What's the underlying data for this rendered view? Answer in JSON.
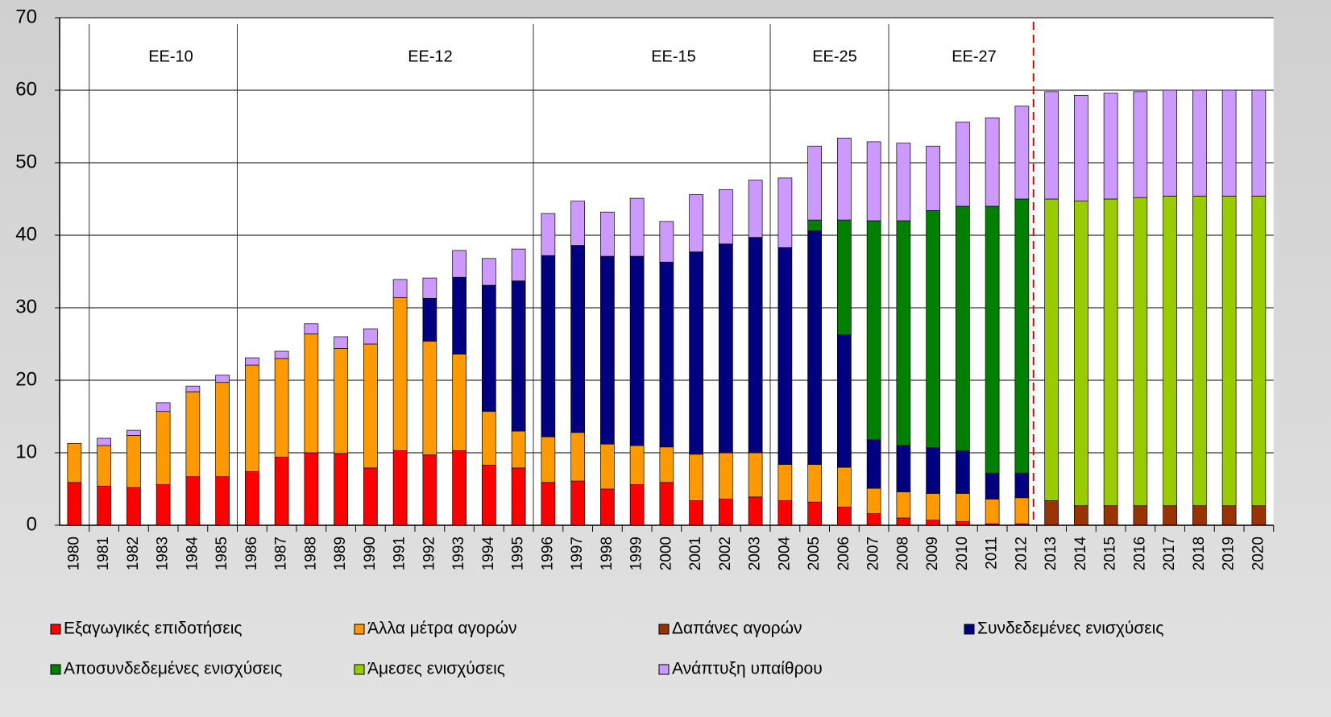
{
  "chart_data": {
    "type": "stacked-bar",
    "annotations": [
      "ΕΕ-10",
      "ΕΕ-12",
      "ΕΕ-15",
      "ΕΕ-25",
      "ΕΕ-27"
    ],
    "categories": [
      "1980",
      "1981",
      "1982",
      "1983",
      "1984",
      "1985",
      "1986",
      "1987",
      "1988",
      "1989",
      "1990",
      "1991",
      "1992",
      "1993",
      "1994",
      "1995",
      "1996",
      "1997",
      "1998",
      "1999",
      "2000",
      "2001",
      "2002",
      "2003",
      "2004",
      "2005",
      "2006",
      "2007",
      "2008",
      "2009",
      "2010",
      "2011",
      "2012",
      "2013",
      "2014",
      "2015",
      "2016",
      "2017",
      "2018",
      "2019",
      "2020"
    ],
    "series": [
      {
        "name": "Εξαγωγικές επιδοτήσεις",
        "color": "#ff0000",
        "values": [
          5.9,
          5.4,
          5.2,
          5.6,
          6.7,
          6.7,
          7.4,
          9.4,
          10.0,
          9.9,
          7.9,
          10.3,
          9.7,
          10.3,
          8.3,
          7.9,
          5.9,
          6.1,
          5.0,
          5.6,
          5.9,
          3.4,
          3.6,
          3.9,
          3.4,
          3.2,
          2.5,
          1.6,
          1.0,
          0.7,
          0.5,
          0.2,
          0.2,
          null,
          null,
          null,
          null,
          null,
          null,
          null,
          null
        ]
      },
      {
        "name": "Άλλα μέτρα αγορών",
        "color": "#ff9900",
        "values": [
          5.4,
          5.6,
          7.2,
          10.1,
          11.7,
          13.0,
          14.7,
          13.6,
          16.4,
          14.5,
          17.1,
          21.1,
          15.7,
          13.3,
          7.4,
          5.1,
          6.3,
          6.7,
          6.2,
          5.4,
          4.9,
          6.4,
          6.4,
          6.1,
          5.0,
          5.2,
          5.5,
          3.5,
          3.6,
          3.7,
          3.9,
          3.4,
          3.6,
          null,
          null,
          null,
          null,
          null,
          null,
          null,
          null
        ]
      },
      {
        "name": "Δαπάνες αγορών",
        "color": "#993300",
        "values": [
          null,
          null,
          null,
          null,
          null,
          null,
          null,
          null,
          null,
          null,
          null,
          null,
          null,
          null,
          null,
          null,
          null,
          null,
          null,
          null,
          null,
          null,
          null,
          null,
          null,
          null,
          null,
          null,
          null,
          null,
          null,
          null,
          null,
          3.4,
          2.7,
          2.7,
          2.7,
          2.7,
          2.7,
          2.7,
          2.7
        ]
      },
      {
        "name": "Συνδεδεμένες ενισχύσεις",
        "color": "#000080",
        "values": [
          null,
          null,
          null,
          null,
          null,
          null,
          null,
          null,
          null,
          null,
          null,
          null,
          5.9,
          10.6,
          17.4,
          20.7,
          25.0,
          25.8,
          25.9,
          26.1,
          25.5,
          27.9,
          28.8,
          29.7,
          29.9,
          32.2,
          18.3,
          6.7,
          6.4,
          6.3,
          5.9,
          3.6,
          3.4,
          null,
          null,
          null,
          null,
          null,
          null,
          null,
          null
        ]
      },
      {
        "name": "Αποσυνδεδεμένες ενισχύσεις",
        "color": "#008000",
        "values": [
          null,
          null,
          null,
          null,
          null,
          null,
          null,
          null,
          null,
          null,
          null,
          null,
          null,
          null,
          null,
          null,
          null,
          null,
          null,
          null,
          null,
          null,
          null,
          null,
          null,
          1.5,
          15.8,
          30.2,
          31.0,
          32.7,
          33.7,
          36.8,
          37.8,
          null,
          null,
          null,
          null,
          null,
          null,
          null,
          null
        ]
      },
      {
        "name": "Άμεσες ενισχύσεις",
        "color": "#99cc00",
        "values": [
          null,
          null,
          null,
          null,
          null,
          null,
          null,
          null,
          null,
          null,
          null,
          null,
          null,
          null,
          null,
          null,
          null,
          null,
          null,
          null,
          null,
          null,
          null,
          null,
          null,
          null,
          null,
          null,
          null,
          null,
          null,
          null,
          null,
          41.6,
          42.0,
          42.3,
          42.5,
          42.7,
          42.7,
          42.7,
          42.7
        ]
      },
      {
        "name": "Ανάπτυξη υπαίθρου",
        "color": "#cc99ff",
        "values": [
          null,
          1.0,
          0.7,
          1.2,
          0.8,
          1.0,
          1.0,
          1.0,
          1.4,
          1.6,
          2.1,
          2.5,
          2.8,
          3.7,
          3.7,
          4.4,
          5.8,
          6.1,
          6.1,
          8.0,
          5.6,
          7.9,
          7.5,
          7.9,
          9.6,
          10.2,
          11.3,
          10.9,
          10.7,
          8.9,
          11.6,
          12.2,
          12.8,
          14.8,
          14.6,
          14.6,
          14.6,
          14.6,
          14.6,
          14.6,
          14.6
        ]
      }
    ],
    "ylim": [
      0,
      70
    ],
    "yticks": [
      0,
      10,
      20,
      30,
      40,
      50,
      60,
      70
    ],
    "grid": true
  }
}
